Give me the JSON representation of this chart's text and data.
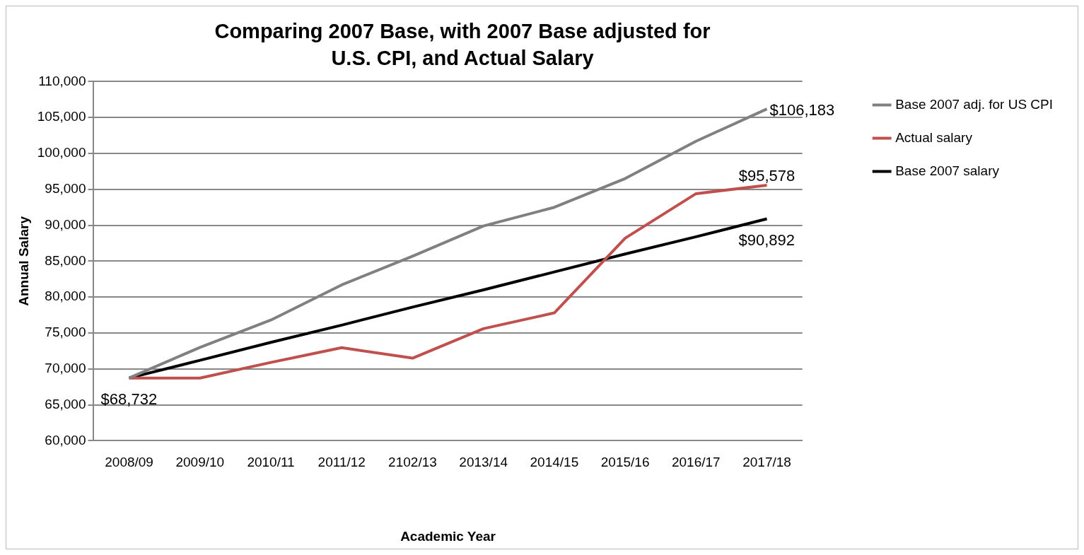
{
  "chart_data": {
    "type": "line",
    "title": "Comparing 2007 Base, with 2007 Base adjusted for U.S. CPI,  and Actual Salary",
    "xlabel": "Academic Year",
    "ylabel": "Annual Salary",
    "categories": [
      "2008/09",
      "2009/10",
      "2010/11",
      "2011/12",
      "2102/13",
      "2013/14",
      "2014/15",
      "2015/16",
      "2016/17",
      "2017/18"
    ],
    "series": [
      {
        "name": "Base 2007 adj. for US CPI",
        "color": "#808080",
        "values": [
          68732,
          73000,
          76800,
          81700,
          85700,
          89900,
          92500,
          96500,
          101700,
          106183
        ]
      },
      {
        "name": "Actual salary",
        "color": "#c0504d",
        "values": [
          68732,
          68732,
          70900,
          72950,
          71500,
          75600,
          77800,
          88200,
          94400,
          95578
        ]
      },
      {
        "name": "Base 2007 salary",
        "color": "#000000",
        "values": [
          68732,
          71200,
          73700,
          76100,
          78600,
          81000,
          83500,
          86000,
          88400,
          90892
        ]
      }
    ],
    "ylim": [
      60000,
      110000
    ],
    "yticks": [
      {
        "value": 60000,
        "label": "60,000"
      },
      {
        "value": 65000,
        "label": "65,000"
      },
      {
        "value": 70000,
        "label": "70,000"
      },
      {
        "value": 75000,
        "label": "75,000"
      },
      {
        "value": 80000,
        "label": "80,000"
      },
      {
        "value": 85000,
        "label": "85,000"
      },
      {
        "value": 90000,
        "label": "90,000"
      },
      {
        "value": 95000,
        "label": "95,000"
      },
      {
        "value": 100000,
        "label": "100,000"
      },
      {
        "value": 105000,
        "label": "105,000"
      },
      {
        "value": 110000,
        "label": "110,000"
      }
    ],
    "annotations": [
      {
        "text": "$68,732",
        "x": "2008/09",
        "y": 68732
      },
      {
        "text": "$106,183",
        "x": "2017/18",
        "y": 106183
      },
      {
        "text": "$95,578",
        "x": "2017/18",
        "y": 95578
      },
      {
        "text": "$90,892",
        "x": "2017/18",
        "y": 90892
      }
    ],
    "grid": "y",
    "legend": "right",
    "marker": "none",
    "line_style": "solid"
  }
}
